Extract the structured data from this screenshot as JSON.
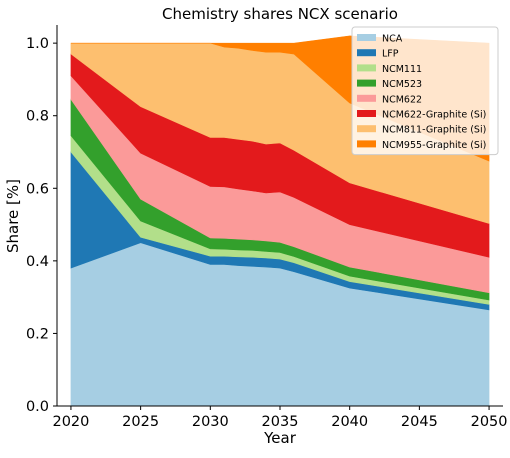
{
  "chart_data": {
    "type": "area",
    "stacked": true,
    "title": "Chemistry shares NCX scenario",
    "xlabel": "Year",
    "ylabel": "Share [%]",
    "xlim": [
      2019,
      2051
    ],
    "ylim": [
      0,
      1.05
    ],
    "x": [
      2020,
      2025,
      2030,
      2031,
      2032,
      2033,
      2034,
      2035,
      2036,
      2040,
      2050
    ],
    "xticks": [
      2020,
      2025,
      2030,
      2035,
      2040,
      2045,
      2050
    ],
    "xtick_labels": [
      "2020",
      "2025",
      "2030",
      "2035",
      "2040",
      "2045",
      "2050"
    ],
    "yticks": [
      0.0,
      0.2,
      0.4,
      0.6,
      0.8,
      1.0
    ],
    "ytick_labels": [
      "0.0",
      "0.2",
      "0.4",
      "0.6",
      "0.8",
      "1.0"
    ],
    "grid": false,
    "legend_position": "top-right",
    "series": [
      {
        "name": "NCA",
        "color": "#a6cee3",
        "values": [
          0.38,
          0.45,
          0.39,
          0.39,
          0.387,
          0.385,
          0.383,
          0.38,
          0.37,
          0.325,
          0.265
        ]
      },
      {
        "name": "LFP",
        "color": "#1f78b4",
        "values": [
          0.32,
          0.015,
          0.023,
          0.023,
          0.024,
          0.025,
          0.025,
          0.025,
          0.025,
          0.018,
          0.015
        ]
      },
      {
        "name": "NCM111",
        "color": "#b2df8a",
        "values": [
          0.045,
          0.045,
          0.02,
          0.019,
          0.019,
          0.019,
          0.018,
          0.018,
          0.017,
          0.015,
          0.012
        ]
      },
      {
        "name": "NCM523",
        "color": "#33a02c",
        "values": [
          0.1,
          0.06,
          0.03,
          0.03,
          0.03,
          0.029,
          0.029,
          0.028,
          0.027,
          0.025,
          0.02
        ]
      },
      {
        "name": "NCM622",
        "color": "#fb9a99",
        "values": [
          0.065,
          0.127,
          0.142,
          0.142,
          0.138,
          0.135,
          0.132,
          0.139,
          0.136,
          0.117,
          0.098
        ]
      },
      {
        "name": "NCM622-Graphite (Si)",
        "color": "#e31a1c",
        "values": [
          0.06,
          0.128,
          0.135,
          0.136,
          0.137,
          0.137,
          0.135,
          0.135,
          0.13,
          0.115,
          0.093
        ]
      },
      {
        "name": "NCM811-Graphite (Si)",
        "color": "#fdbf6f",
        "values": [
          0.03,
          0.175,
          0.26,
          0.249,
          0.251,
          0.25,
          0.253,
          0.25,
          0.265,
          0.22,
          0.172
        ]
      },
      {
        "name": "NCM955-Graphite (Si)",
        "color": "#ff7f00",
        "values": [
          0.0,
          0.0,
          0.0,
          0.011,
          0.014,
          0.02,
          0.025,
          0.025,
          0.03,
          0.185,
          0.325
        ]
      }
    ]
  }
}
